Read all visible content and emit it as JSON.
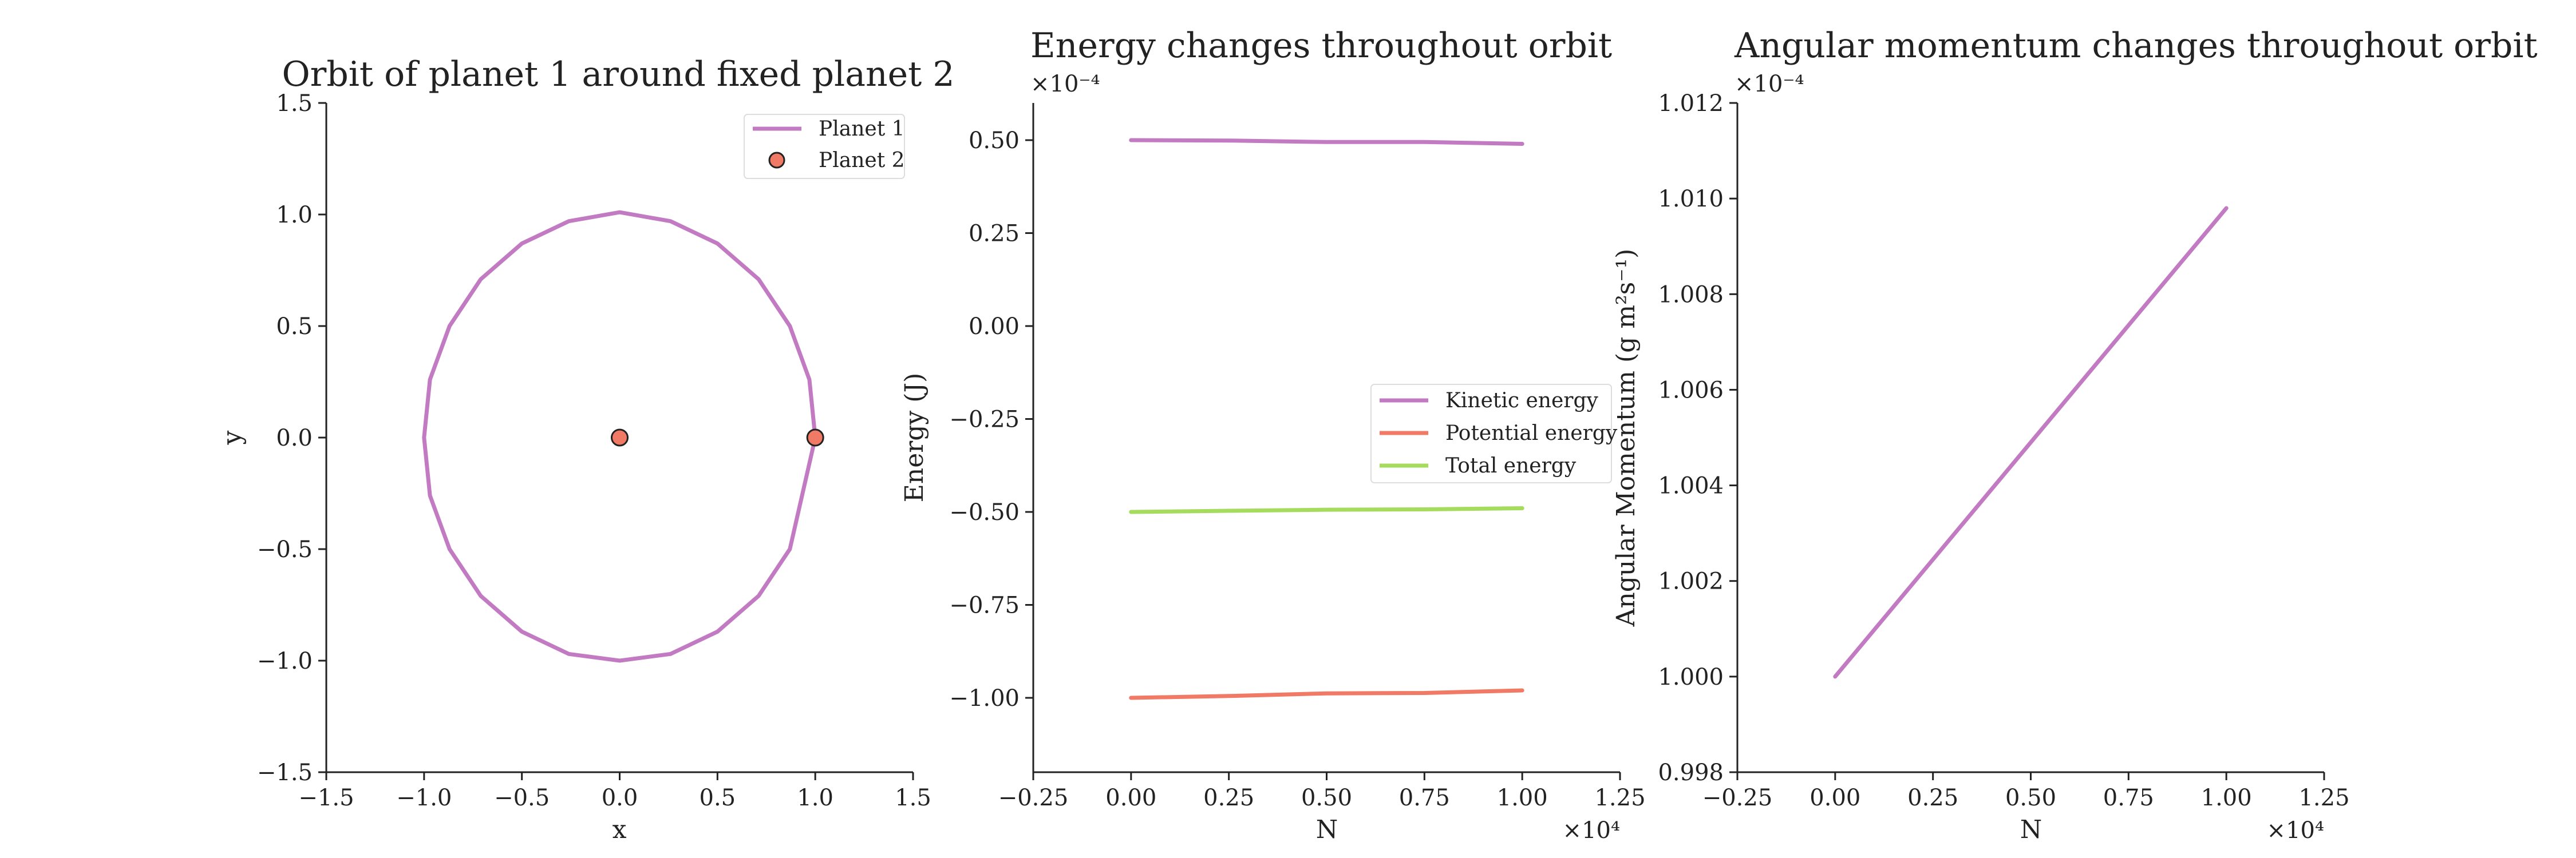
{
  "chart_data": [
    {
      "type": "line",
      "title": "Orbit of planet 1 around fixed planet 2",
      "xlabel": "x",
      "ylabel": "y",
      "xlim": [
        -1.5,
        1.5
      ],
      "ylim": [
        -1.5,
        1.5
      ],
      "xticks": [
        -1.5,
        -1.0,
        -0.5,
        0.0,
        0.5,
        1.0,
        1.5
      ],
      "yticks": [
        -1.5,
        -1.0,
        -0.5,
        0.0,
        0.5,
        1.0,
        1.5
      ],
      "xtick_labels": [
        "−1.5",
        "−1.0",
        "−0.5",
        "0.0",
        "0.5",
        "1.0",
        "1.5"
      ],
      "ytick_labels": [
        "−1.5",
        "−1.0",
        "−0.5",
        "0.0",
        "0.5",
        "1.0",
        "1.5"
      ],
      "grid": false,
      "legend_position": "upper right",
      "series": [
        {
          "name": "Planet 1",
          "kind": "line",
          "color": "#c27bc3",
          "x": [
            1.0,
            0.87,
            0.71,
            0.5,
            0.26,
            0.0,
            -0.26,
            -0.5,
            -0.71,
            -0.87,
            -0.97,
            -1.0,
            -0.97,
            -0.87,
            -0.71,
            -0.5,
            -0.26,
            0.0,
            0.26,
            0.5,
            0.71,
            0.87,
            0.97,
            1.0
          ],
          "y": [
            0.0,
            -0.5,
            -0.71,
            -0.87,
            -0.97,
            -1.0,
            -0.97,
            -0.87,
            -0.71,
            -0.5,
            -0.26,
            0.0,
            0.26,
            0.5,
            0.71,
            0.87,
            0.97,
            1.01,
            0.97,
            0.87,
            0.71,
            0.5,
            0.26,
            0.0
          ]
        },
        {
          "name": "Planet 2",
          "kind": "scatter",
          "color": "#f07a65",
          "x": [
            0.0,
            1.0
          ],
          "y": [
            0.0,
            0.0
          ]
        }
      ]
    },
    {
      "type": "line",
      "title": "Energy changes throughout orbit",
      "xlabel": "N",
      "ylabel": "Energy (J)",
      "x_multiplier": "×10⁴",
      "y_multiplier": "×10⁻⁴",
      "xlim": [
        -0.25,
        1.25
      ],
      "ylim": [
        -1.2,
        0.6
      ],
      "xticks": [
        -0.25,
        0.0,
        0.25,
        0.5,
        0.75,
        1.0,
        1.25
      ],
      "yticks": [
        -1.0,
        -0.75,
        -0.5,
        -0.25,
        0.0,
        0.25,
        0.5
      ],
      "xtick_labels": [
        "−0.25",
        "0.00",
        "0.25",
        "0.50",
        "0.75",
        "1.00",
        "1.25"
      ],
      "ytick_labels": [
        "−1.00",
        "−0.75",
        "−0.50",
        "−0.25",
        "0.00",
        "0.25",
        "0.50"
      ],
      "grid": false,
      "legend_position": "center right",
      "series": [
        {
          "name": "Kinetic energy",
          "color": "#c27bc3",
          "x": [
            0.0,
            0.25,
            0.5,
            0.75,
            1.0
          ],
          "y": [
            0.5,
            0.499,
            0.495,
            0.495,
            0.49
          ]
        },
        {
          "name": "Potential energy",
          "color": "#f07a65",
          "x": [
            0.0,
            0.25,
            0.5,
            0.75,
            1.0
          ],
          "y": [
            -1.0,
            -0.995,
            -0.988,
            -0.987,
            -0.98
          ]
        },
        {
          "name": "Total energy",
          "color": "#a6dc5d",
          "x": [
            0.0,
            0.25,
            0.5,
            0.75,
            1.0
          ],
          "y": [
            -0.5,
            -0.497,
            -0.494,
            -0.493,
            -0.49
          ]
        }
      ]
    },
    {
      "type": "line",
      "title": "Angular momentum changes throughout orbit",
      "xlabel": "N",
      "ylabel": "Angular Momentum (g m²s⁻¹)",
      "x_multiplier": "×10⁴",
      "y_multiplier": "×10⁻⁴",
      "xlim": [
        -0.25,
        1.25
      ],
      "ylim": [
        0.998,
        1.012
      ],
      "xticks": [
        -0.25,
        0.0,
        0.25,
        0.5,
        0.75,
        1.0,
        1.25
      ],
      "yticks": [
        0.998,
        1.0,
        1.002,
        1.004,
        1.006,
        1.008,
        1.01,
        1.012
      ],
      "xtick_labels": [
        "−0.25",
        "0.00",
        "0.25",
        "0.50",
        "0.75",
        "1.00",
        "1.25"
      ],
      "ytick_labels": [
        "0.998",
        "1.000",
        "1.002",
        "1.004",
        "1.006",
        "1.008",
        "1.010",
        "1.012"
      ],
      "grid": false,
      "series": [
        {
          "color": "#c27bc3",
          "x": [
            0.0,
            1.0
          ],
          "y": [
            1.0,
            1.0098
          ]
        }
      ]
    }
  ]
}
